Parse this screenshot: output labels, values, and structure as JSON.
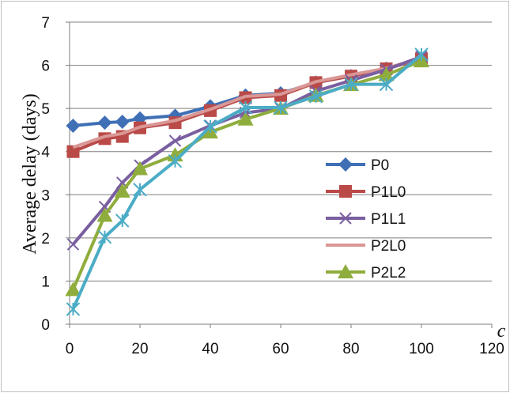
{
  "chart_data": {
    "type": "line",
    "xlabel": "c",
    "ylabel": "Average delay (days)",
    "xlim": [
      0,
      120
    ],
    "ylim": [
      0,
      7
    ],
    "xticks": [
      "0",
      "20",
      "40",
      "60",
      "80",
      "100",
      "120"
    ],
    "yticks": [
      "0",
      "1",
      "2",
      "3",
      "4",
      "5",
      "6",
      "7"
    ],
    "grid": "horizontal",
    "legend_position": "right",
    "series": [
      {
        "name": "P0",
        "color": "#3f6fb5",
        "marker": "diamond",
        "x": [
          1,
          10,
          15,
          20,
          30,
          40,
          50,
          60,
          70,
          80,
          90,
          100
        ],
        "y": [
          4.6,
          4.67,
          4.69,
          4.77,
          4.83,
          5.05,
          5.3,
          5.35,
          5.6,
          5.75,
          5.92,
          6.15
        ]
      },
      {
        "name": "P1L0",
        "color": "#b94a48",
        "marker": "square",
        "x": [
          1,
          10,
          15,
          20,
          30,
          40,
          50,
          60,
          70,
          80,
          90,
          100
        ],
        "y": [
          4.0,
          4.3,
          4.35,
          4.55,
          4.67,
          4.95,
          5.25,
          5.3,
          5.6,
          5.75,
          5.92,
          6.15
        ]
      },
      {
        "name": "P1L1",
        "color": "#7a5fa0",
        "marker": "x",
        "x": [
          1,
          10,
          15,
          20,
          30,
          40,
          50,
          60,
          70,
          80,
          90,
          100
        ],
        "y": [
          1.85,
          2.72,
          3.28,
          3.68,
          4.25,
          4.6,
          4.9,
          5.0,
          5.4,
          5.65,
          5.9,
          6.2
        ]
      },
      {
        "name": "P2L0",
        "color": "#d99795",
        "marker": "none",
        "x": [
          1,
          10,
          15,
          20,
          30,
          40,
          50,
          60,
          70,
          80,
          90,
          100
        ],
        "y": [
          4.1,
          4.35,
          4.42,
          4.57,
          4.72,
          4.98,
          5.28,
          5.33,
          5.62,
          5.78,
          5.93,
          6.17
        ]
      },
      {
        "name": "P2L2",
        "color": "#8fad3c",
        "marker": "triangle",
        "x": [
          1,
          10,
          15,
          20,
          30,
          40,
          50,
          60,
          70,
          80,
          90,
          100
        ],
        "y": [
          0.8,
          2.52,
          3.08,
          3.6,
          3.92,
          4.45,
          4.75,
          5.0,
          5.3,
          5.55,
          5.78,
          6.1
        ]
      },
      {
        "name": "",
        "color": "#4bacc6",
        "marker": "asterisk",
        "x": [
          1,
          10,
          15,
          20,
          30,
          40,
          50,
          60,
          70,
          80,
          90,
          100
        ],
        "y": [
          0.35,
          2.02,
          2.4,
          3.12,
          3.78,
          4.58,
          5.02,
          5.02,
          5.28,
          5.56,
          5.56,
          6.25
        ]
      }
    ]
  }
}
